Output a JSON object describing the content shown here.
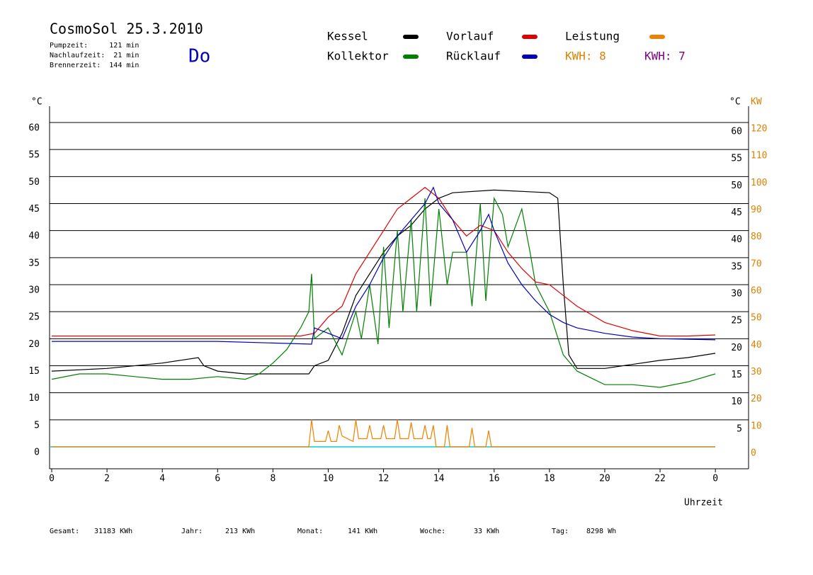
{
  "chart_data": {
    "type": "line",
    "title": "CosmoSol 25.3.2010",
    "info": [
      "Pumpzeit:     121 min",
      "Nachlaufzeit:  21 min",
      "Brennerzeit:  144 min"
    ],
    "day": "Do",
    "y_unit": "°C",
    "y2_unit": "KW",
    "x_label": "Uhrzeit",
    "xlim": [
      0,
      25.2
    ],
    "xticks": [
      0,
      2,
      4,
      6,
      8,
      10,
      12,
      14,
      16,
      18,
      20,
      22,
      {
        "value": 24,
        "label": "0"
      }
    ],
    "ylim": [
      0,
      60
    ],
    "yticks": [
      0,
      5,
      10,
      15,
      20,
      25,
      30,
      35,
      40,
      45,
      50,
      55,
      60
    ],
    "y2lim": [
      0,
      120
    ],
    "y2ticks": [
      0,
      10,
      20,
      30,
      40,
      50,
      60,
      70,
      80,
      90,
      100,
      110,
      120
    ],
    "grid": true,
    "series": [
      {
        "name": "Kessel",
        "color": "#000000",
        "x": [
          0,
          2,
          4,
          5.3,
          5.5,
          6,
          7,
          9.3,
          9.5,
          10,
          10.5,
          11,
          11.5,
          12,
          12.5,
          13,
          13.5,
          14,
          14.5,
          16,
          18,
          18.3,
          18.5,
          18.7,
          19,
          20,
          22,
          23,
          24
        ],
        "values": [
          14,
          14.5,
          15.5,
          16.5,
          15,
          14,
          13.5,
          13.5,
          15,
          16,
          21,
          28,
          32,
          36,
          39,
          41,
          44,
          46,
          47,
          47.5,
          47,
          46,
          30,
          17,
          14.5,
          14.5,
          16,
          16.5,
          17.3
        ]
      },
      {
        "name": "Kollektor",
        "color": "#008000",
        "x": [
          0,
          1,
          2,
          3,
          4,
          5,
          6,
          7,
          7.5,
          8,
          8.5,
          9,
          9.3,
          9.4,
          9.5,
          10,
          10.5,
          11,
          11.2,
          11.5,
          11.8,
          12,
          12.2,
          12.5,
          12.7,
          13,
          13.2,
          13.5,
          13.7,
          14,
          14.3,
          14.5,
          15,
          15.2,
          15.5,
          15.7,
          16,
          16.3,
          16.5,
          17,
          17.3,
          17.5,
          18,
          18.5,
          19,
          20,
          21,
          22,
          23,
          24
        ],
        "values": [
          12.5,
          13.5,
          13.5,
          13,
          12.5,
          12.5,
          13,
          12.5,
          13.5,
          15.5,
          18,
          22,
          25,
          32,
          20,
          22,
          17,
          25,
          20,
          30,
          19,
          37,
          22,
          40,
          25,
          42,
          25,
          46,
          26,
          44,
          30,
          36,
          36,
          26,
          45,
          27,
          46,
          43,
          37,
          44,
          36,
          30,
          25,
          17,
          14,
          11.5,
          11.5,
          11,
          12,
          13.5
        ]
      },
      {
        "name": "Vorlauf",
        "color": "#e00000",
        "x": [
          0,
          9,
          9.5,
          10,
          10.5,
          11,
          11.5,
          12,
          12.5,
          13,
          13.5,
          14,
          14.5,
          15,
          15.5,
          16,
          16.5,
          17,
          17.5,
          18,
          18.5,
          19,
          20,
          21,
          22,
          23,
          24
        ],
        "values": [
          20.5,
          20.5,
          21,
          24,
          26,
          32,
          36,
          40,
          44,
          46,
          48,
          46,
          42,
          39,
          41,
          40,
          36,
          33,
          30.5,
          30,
          28,
          26,
          23,
          21.5,
          20.5,
          20.5,
          20.7
        ]
      },
      {
        "name": "Rücklauf",
        "color": "#0000c0",
        "x": [
          0,
          6,
          9.4,
          9.5,
          10,
          10.5,
          11,
          11.5,
          12,
          12.5,
          13,
          13.5,
          13.8,
          14,
          14.5,
          15,
          15.5,
          15.8,
          16,
          16.5,
          17,
          17.5,
          18,
          18.5,
          19,
          20,
          21,
          22,
          24
        ],
        "values": [
          19.5,
          19.5,
          19,
          22,
          21,
          20,
          26,
          30,
          35,
          39,
          42,
          45,
          48,
          45,
          42,
          36,
          40,
          43,
          40,
          34,
          30,
          27,
          24.5,
          23,
          22,
          21,
          20.3,
          20,
          19.8
        ]
      },
      {
        "name": "Leistung",
        "color": "#f08000",
        "axis": "y2",
        "x": [
          0,
          9.3,
          9.4,
          9.5,
          9.9,
          10,
          10.1,
          10.3,
          10.4,
          10.5,
          10.9,
          11,
          11.1,
          11.4,
          11.5,
          11.6,
          11.9,
          12,
          12.1,
          12.4,
          12.5,
          12.6,
          12.9,
          13,
          13.1,
          13.4,
          13.5,
          13.6,
          13.7,
          13.8,
          13.9,
          14.2,
          14.3,
          14.4,
          15.1,
          15.2,
          15.3,
          15.7,
          15.8,
          15.9,
          24
        ],
        "values": [
          0,
          0,
          10,
          2,
          2,
          6,
          2,
          2,
          8,
          4,
          2,
          10,
          3,
          3,
          8,
          3,
          3,
          8,
          3,
          3,
          10,
          3,
          3,
          9,
          3,
          3,
          8,
          3,
          3,
          8,
          0,
          0,
          8,
          0,
          0,
          7,
          0,
          0,
          6,
          0,
          0
        ]
      }
    ],
    "kwh_labels": [
      {
        "text": "KWH: 8",
        "color": "#e08000"
      },
      {
        "text": "KWH: 7",
        "color": "#800080"
      }
    ],
    "footer": [
      {
        "label": "Gesamt:",
        "value": "31183 KWh"
      },
      {
        "label": "Jahr:",
        "value": "213 KWh"
      },
      {
        "label": "Monat:",
        "value": "141 KWh"
      },
      {
        "label": "Woche:",
        "value": "33 KWh"
      },
      {
        "label": "Tag:",
        "value": "8298 Wh"
      }
    ]
  }
}
